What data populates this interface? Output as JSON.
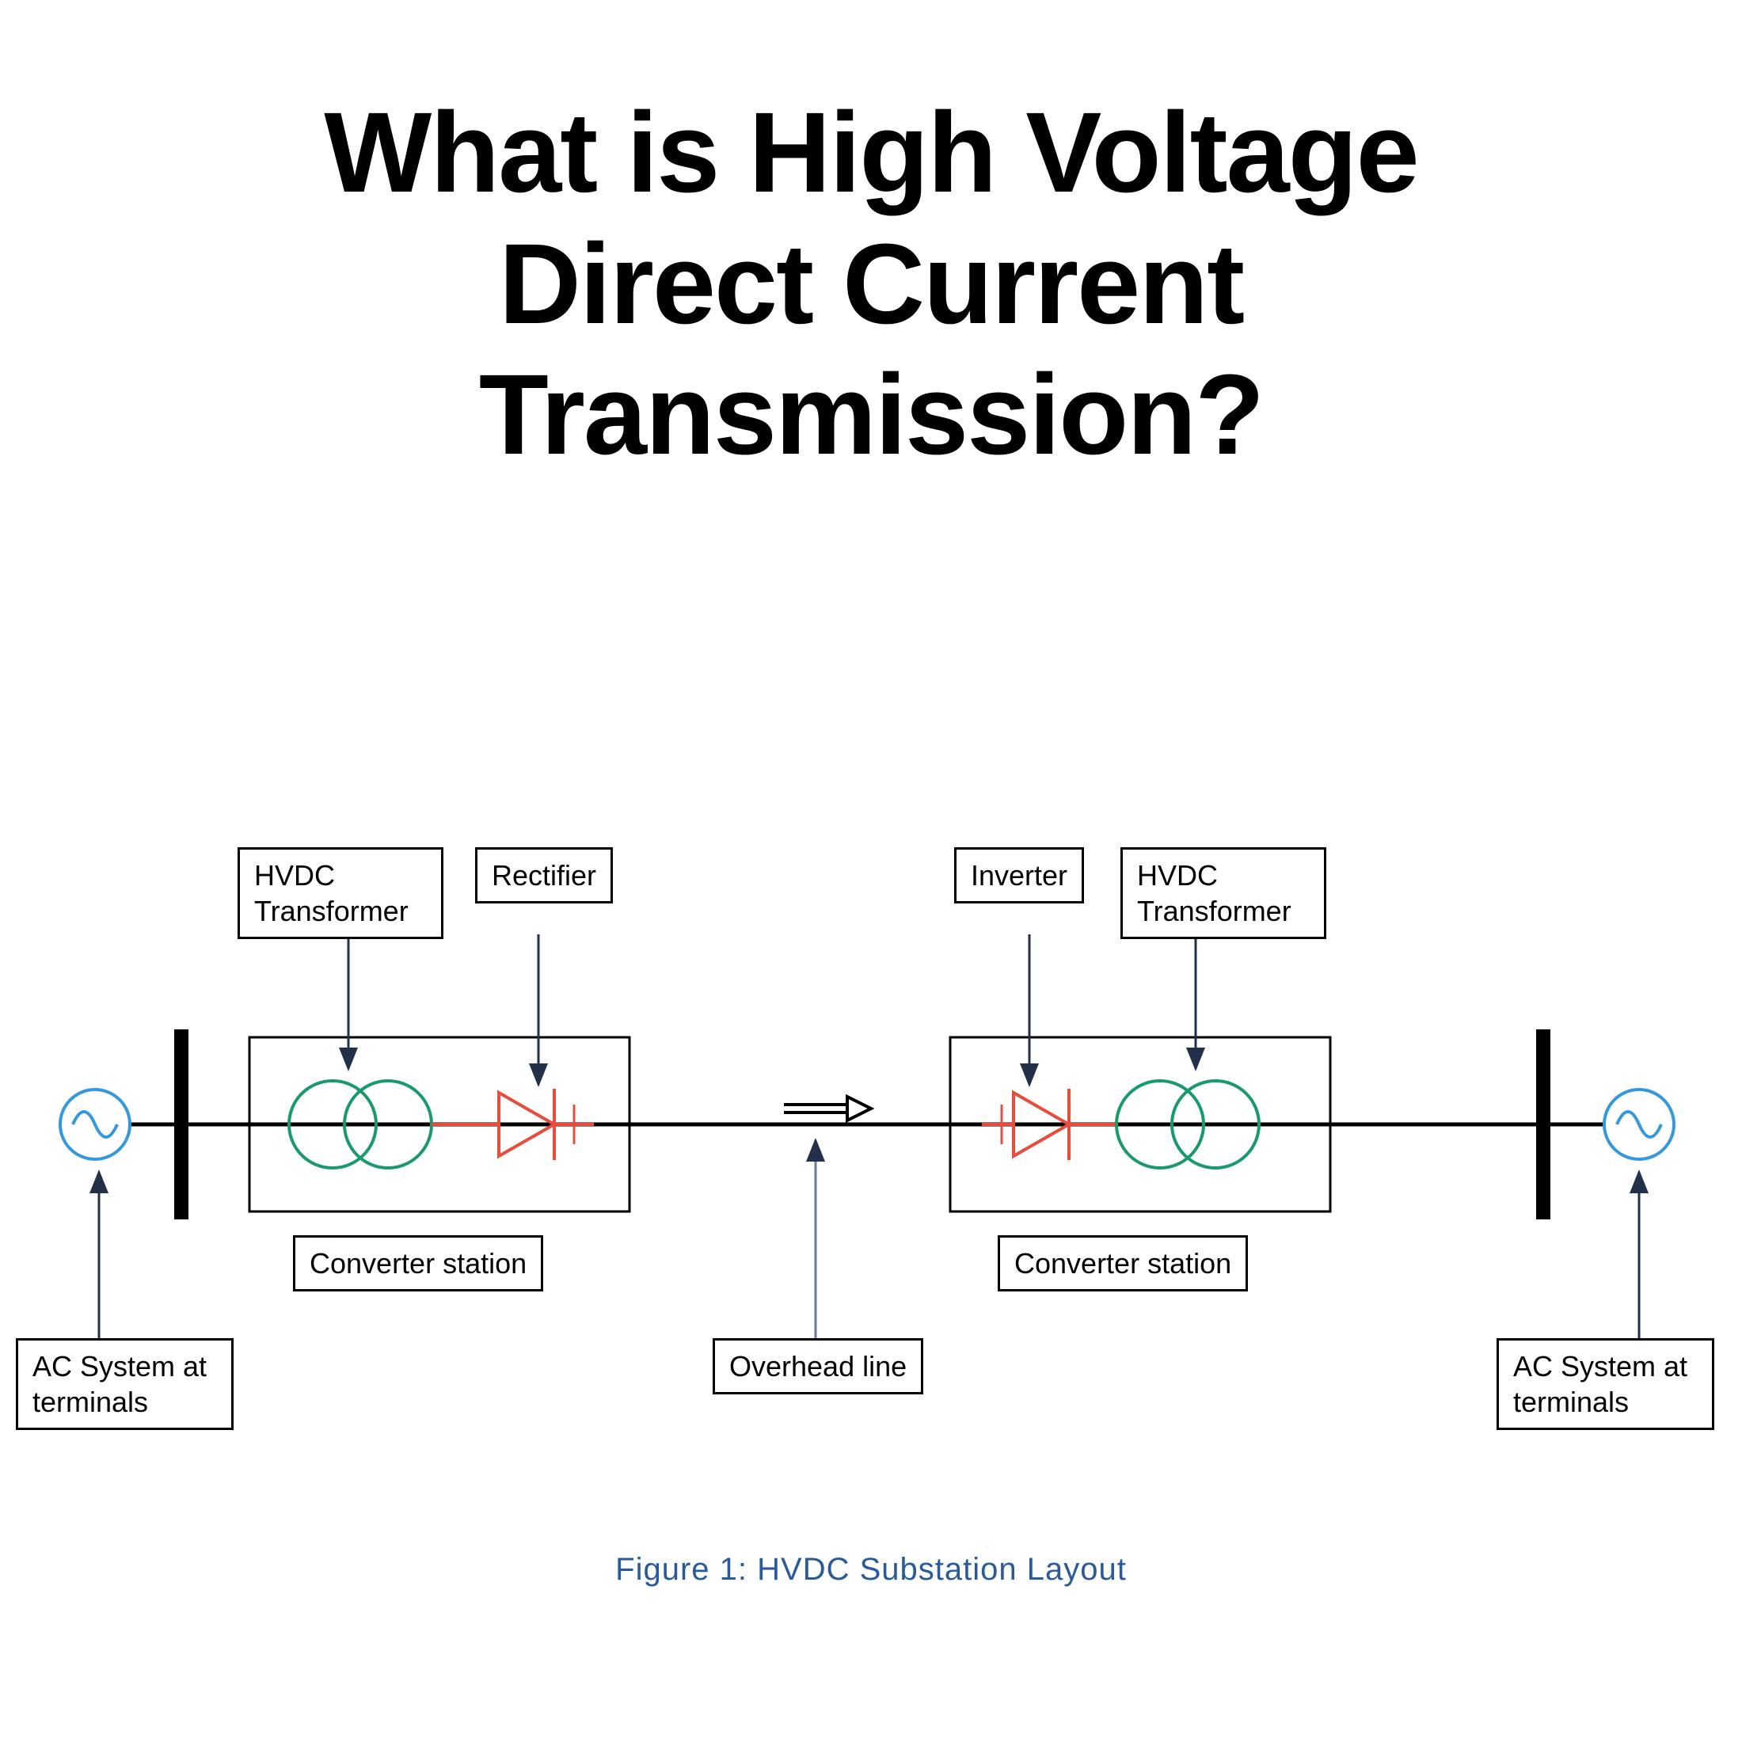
{
  "title": {
    "line1": "What is High Voltage",
    "line2": "Direct Current",
    "line3": "Transmission?",
    "fontsize": 144,
    "color": "#000000"
  },
  "diagram": {
    "background": "#ffffff",
    "line_color": "#000000",
    "line_width": 4,
    "arrow_color": "#22304a",
    "arrow_width": 3,
    "ac_source_color": "#3498db",
    "ac_source_stroke": 4,
    "busbar_color": "#000000",
    "busbar_width": 18,
    "transformer_color": "#1a9a6a",
    "transformer_stroke": 4,
    "diode_color": "#e74c3c",
    "diode_stroke": 4,
    "converter_box_stroke": "#000000",
    "converter_box_width": 3,
    "flow_arrow_stroke": "#000000",
    "label_font": 36,
    "label_border": "#000000",
    "labels": {
      "hvdc_transformer_left": "HVDC\nTransformer",
      "rectifier": "Rectifier",
      "inverter": "Inverter",
      "hvdc_transformer_right": "HVDC\nTransformer",
      "converter_station_left": "Converter station",
      "converter_station_right": "Converter station",
      "ac_system_left": "AC System at\nterminals",
      "ac_system_right": "AC System at\nterminals",
      "overhead_line": "Overhead line"
    }
  },
  "caption": {
    "text": "Figure 1:  HVDC Substation Layout",
    "color": "#2a5a9a",
    "fontsize": 40
  }
}
